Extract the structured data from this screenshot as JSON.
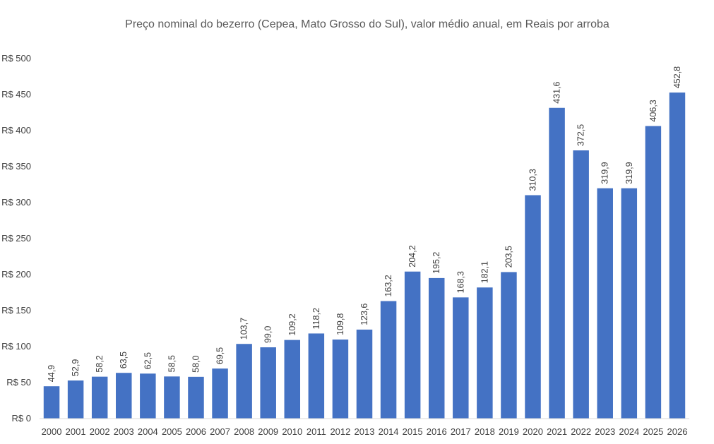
{
  "chart_data": {
    "type": "bar",
    "title": "Preço nominal do bezerro (Cepea, Mato Grosso do Sul), valor médio anual, em Reais por arroba",
    "xlabel": "",
    "ylabel": "",
    "categories": [
      "2000",
      "2001",
      "2002",
      "2003",
      "2004",
      "2005",
      "2006",
      "2007",
      "2008",
      "2009",
      "2010",
      "2011",
      "2012",
      "2013",
      "2014",
      "2015",
      "2016",
      "2017",
      "2018",
      "2019",
      "2020",
      "2021",
      "2022",
      "2023",
      "2024",
      "2025",
      "2026"
    ],
    "values": [
      44.9,
      52.9,
      58.2,
      63.5,
      62.5,
      58.5,
      58.0,
      69.5,
      103.7,
      99.0,
      109.2,
      118.2,
      109.8,
      123.6,
      163.2,
      204.2,
      195.2,
      168.3,
      182.1,
      203.5,
      310.3,
      431.6,
      372.5,
      319.9,
      319.9,
      406.3,
      452.8
    ],
    "data_labels": [
      "44,9",
      "52,9",
      "58,2",
      "63,5",
      "62,5",
      "58,5",
      "58,0",
      "69,5",
      "103,7",
      "99,0",
      "109,2",
      "118,2",
      "109,8",
      "123,6",
      "163,2",
      "204,2",
      "195,2",
      "168,3",
      "182,1",
      "203,5",
      "310,3",
      "431,6",
      "372,5",
      "319,9",
      "319,9",
      "406,3",
      "452,8"
    ],
    "ylim": [
      0,
      500
    ],
    "yticks": [
      0,
      50,
      100,
      150,
      200,
      250,
      300,
      350,
      400,
      450,
      500
    ],
    "ytick_labels": [
      "R$ 0",
      "R$ 50",
      "R$ 100",
      "R$ 150",
      "R$ 200",
      "R$ 250",
      "R$ 300",
      "R$ 350",
      "R$ 400",
      "R$ 450",
      "R$ 500"
    ],
    "grid": false,
    "legend": "none",
    "bar_color": "#4472C4"
  }
}
